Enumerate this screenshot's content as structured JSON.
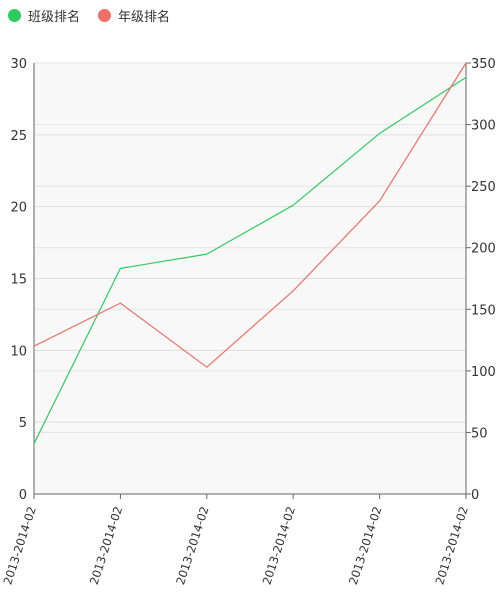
{
  "legend": {
    "items": [
      {
        "label": "班级排名",
        "color": "#2ecc5e"
      },
      {
        "label": "年级排名",
        "color": "#ef7066"
      }
    ]
  },
  "chart_data": {
    "type": "line",
    "categories": [
      "2013-2014-02",
      "2013-2014-02",
      "2013-2014-02",
      "2013-2014-02",
      "2013-2014-02",
      "2013-2014-02"
    ],
    "series": [
      {
        "name": "班级排名",
        "axis": "left",
        "color": "#2ecc5e",
        "values": [
          3.5,
          15.7,
          16.7,
          20.1,
          25.1,
          29.0
        ]
      },
      {
        "name": "年级排名",
        "axis": "right",
        "color": "#ef7066",
        "values": [
          120,
          155,
          103,
          165,
          238,
          350
        ]
      }
    ],
    "y_left": {
      "range": [
        0,
        30
      ],
      "ticks": [
        0,
        5,
        10,
        15,
        20,
        25,
        30
      ]
    },
    "y_right": {
      "range": [
        0,
        350
      ],
      "ticks": [
        0,
        50,
        100,
        150,
        200,
        250,
        300,
        350
      ]
    },
    "grid": true,
    "plot_background": "#f8f8f8",
    "legend_position": "top-left"
  }
}
